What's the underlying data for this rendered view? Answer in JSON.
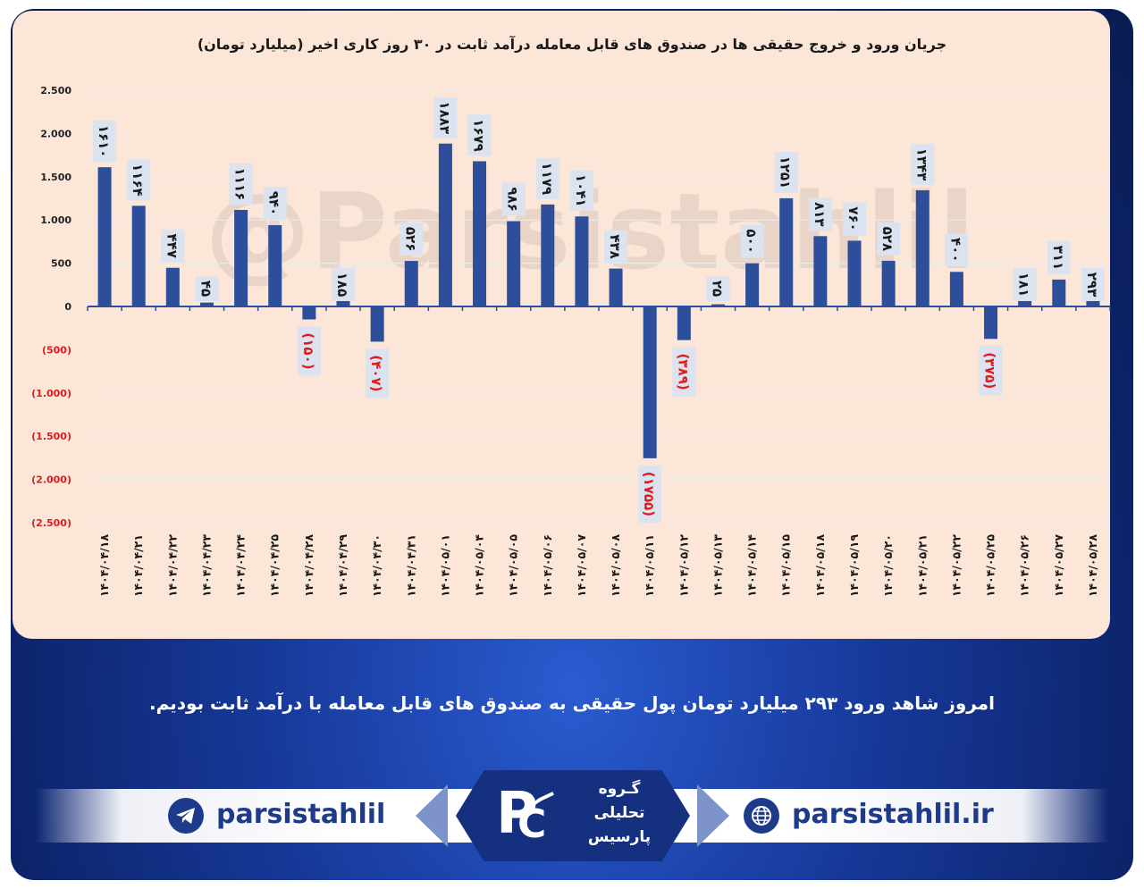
{
  "chart_data": {
    "type": "bar",
    "title": "جریان ورود و خروج حقیقی ها در صندوق های قابل معامله درآمد ثابت در ۳۰ روز کاری اخیر (میلیارد تومان)",
    "categories": [
      "۱۴۰۴/۰۴/۱۸",
      "۱۴۰۴/۰۴/۲۱",
      "۱۴۰۴/۰۴/۲۲",
      "۱۴۰۴/۰۴/۲۳",
      "۱۴۰۴/۰۴/۲۴",
      "۱۴۰۴/۰۴/۲۵",
      "۱۴۰۴/۰۴/۲۸",
      "۱۴۰۴/۰۴/۲۹",
      "۱۴۰۴/۰۴/۳۰",
      "۱۴۰۴/۰۴/۳۱",
      "۱۴۰۴/۰۵/۰۱",
      "۱۴۰۴/۰۵/۰۴",
      "۱۴۰۴/۰۵/۰۵",
      "۱۴۰۴/۰۵/۰۶",
      "۱۴۰۴/۰۵/۰۷",
      "۱۴۰۴/۰۵/۰۸",
      "۱۴۰۴/۰۵/۱۱",
      "۱۴۰۴/۰۵/۱۲",
      "۱۴۰۴/۰۵/۱۳",
      "۱۴۰۴/۰۵/۱۴",
      "۱۴۰۴/۰۵/۱۵",
      "۱۴۰۴/۰۵/۱۸",
      "۱۴۰۴/۰۵/۱۹",
      "۱۴۰۴/۰۵/۲۰",
      "۱۴۰۴/۰۵/۲۱",
      "۱۴۰۴/۰۵/۲۲",
      "۱۴۰۴/۰۵/۲۵",
      "۱۴۰۴/۰۵/۲۶",
      "۱۴۰۴/۰۵/۲۷",
      "۱۴۰۴/۰۵/۲۸"
    ],
    "values": [
      1610,
      1164,
      447,
      45,
      1116,
      940,
      -150,
      185,
      -407,
      526,
      1883,
      1679,
      986,
      1179,
      1041,
      438,
      -1755,
      -389,
      25,
      500,
      1251,
      813,
      760,
      528,
      1343,
      400,
      -375,
      181,
      311,
      293
    ],
    "data_labels": [
      "۱۶۱۰",
      "۱۱۶۴",
      "۴۴۷",
      "۴۵",
      "۱۱۱۶",
      "۹۴۰",
      "(۱۵۰)",
      "۱۸۵",
      "(۴۰۷)",
      "۵۲۶",
      "۱۸۸۳",
      "۱۶۷۹",
      "۹۸۶",
      "۱۱۷۹",
      "۱۰۴۱",
      "۴۳۸",
      "(۱۷۵۵)",
      "(۳۸۹)",
      "۲۵",
      "۵۰۰",
      "۱۲۵۱",
      "۸۱۳",
      "۷۶۰",
      "۵۲۸",
      "۱۳۴۳",
      "۴۰۰",
      "(۳۷۵)",
      "۱۸۱",
      "۳۱۱",
      "۲۹۳"
    ],
    "yticks": [
      2500,
      2000,
      1500,
      1000,
      500,
      0,
      -500,
      -1000,
      -1500,
      -2000,
      -2500
    ],
    "ytick_labels": [
      "2.500",
      "2.000",
      "1.500",
      "1.000",
      "500",
      "0",
      "(500)",
      "(1.000)",
      "(1.500)",
      "(2.000)",
      "(2.500)"
    ],
    "ylim": [
      -2500,
      2500
    ],
    "xlabel": "",
    "ylabel": "",
    "grid": true,
    "watermark": "@Parsistahlil"
  },
  "colors": {
    "bar": "#2d4f9b",
    "panel": "#fbe6d8",
    "negative_label": "#e01b1b",
    "label_box": "#dbe3f0",
    "gridline": "#ececec"
  },
  "summary_text": "امروز شاهد ورود ۲۹۳ میلیارد تومان پول حقیقی به صندوق های قابل معامله با درآمد ثابت بودیم.",
  "footer": {
    "telegram_handle": "parsistahlil",
    "telegram_icon": "telegram-icon",
    "website": "parsistahlil.ir",
    "website_icon": "globe-icon",
    "logo_line1": "گـروه",
    "logo_line2": "تحلیلی",
    "logo_line3": "پارسیس"
  }
}
